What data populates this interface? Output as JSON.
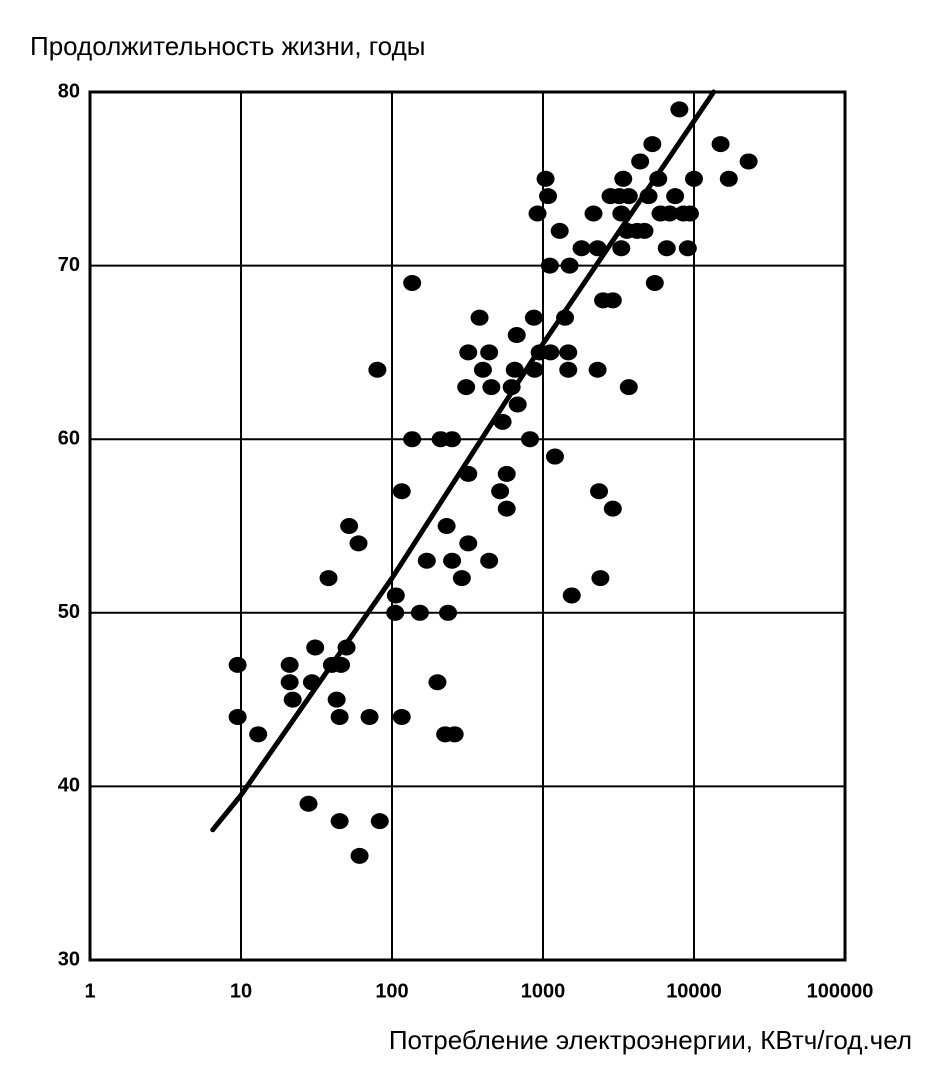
{
  "chart_data": {
    "type": "scatter",
    "title": "Продолжительность жизни, годы",
    "x_label": "Потребление электроэнергии, КВтч/год.чел",
    "xscale": "log",
    "xlim": [
      1,
      100000
    ],
    "xticks": [
      1,
      10,
      100,
      1000,
      10000,
      100000
    ],
    "ylim": [
      30,
      80
    ],
    "yticks": [
      30,
      40,
      50,
      60,
      70,
      80
    ],
    "grid": true,
    "color": "#000000",
    "x": [
      9.5,
      9.5,
      13,
      21,
      21,
      22,
      29.5,
      31,
      40,
      46,
      50,
      43,
      45,
      28,
      45,
      61,
      83,
      71,
      116,
      38,
      52,
      60,
      80,
      106,
      105,
      116,
      136,
      136,
      153,
      170,
      200,
      210,
      225,
      260,
      230,
      250,
      235,
      250,
      290,
      310,
      320,
      320,
      320,
      380,
      400,
      440,
      455,
      440,
      520,
      540,
      575,
      575,
      620,
      650,
      670,
      680,
      820,
      870,
      880,
      920,
      950,
      1040,
      1080,
      1110,
      1120,
      1200,
      1290,
      1400,
      1470,
      1470,
      1500,
      1550,
      1800,
      2160,
      2300,
      2350,
      2400,
      2300,
      2500,
      2800,
      2900,
      2900,
      3200,
      3300,
      3300,
      3400,
      3700,
      3600,
      3700,
      4200,
      4400,
      4700,
      5000,
      5300,
      5500,
      5800,
      6000,
      6600,
      6900,
      7500,
      8000,
      8500,
      9100,
      9400,
      10000,
      15000,
      17000,
      23000
    ],
    "values": [
      47,
      44,
      43,
      47,
      46,
      45,
      46,
      48,
      47,
      47,
      48,
      45,
      44,
      39,
      38,
      36,
      38,
      44,
      44,
      52,
      55,
      54,
      64,
      51,
      50,
      57,
      69,
      60,
      50,
      53,
      46,
      60,
      43,
      43,
      55,
      60,
      50,
      53,
      52,
      63,
      65,
      54,
      58,
      67,
      64,
      65,
      63,
      53,
      57,
      61,
      58,
      56,
      63,
      64,
      66,
      62,
      60,
      67,
      64,
      73,
      65,
      75,
      74,
      70,
      65,
      59,
      72,
      67,
      65,
      64,
      70,
      51,
      71,
      73,
      64,
      57,
      52,
      71,
      68,
      74,
      68,
      56,
      74,
      73,
      71,
      75,
      74,
      72,
      63,
      72,
      76,
      72,
      74,
      77,
      69,
      75,
      73,
      71,
      73,
      74,
      79,
      73,
      71,
      73,
      75,
      77,
      75,
      76
    ],
    "trend_line": {
      "x": [
        6.5,
        10,
        100,
        1000,
        13500
      ],
      "values": [
        37.5,
        39.5,
        52,
        65.5,
        80
      ],
      "color": "#000000"
    }
  }
}
